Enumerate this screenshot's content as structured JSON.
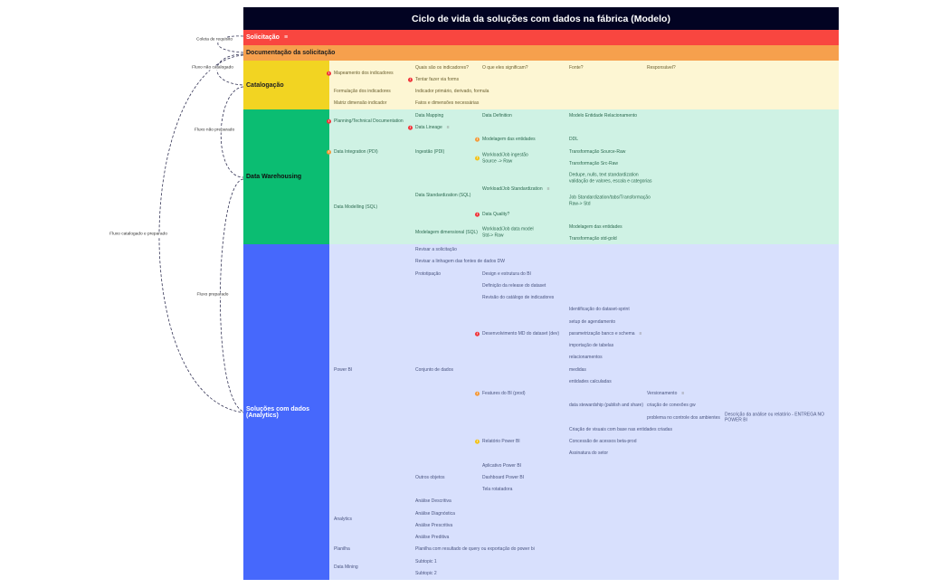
{
  "title": "Ciclo de vida da soluções com dados na fábrica (Modelo)",
  "colors": {
    "title_bg": "#020322",
    "solicitacao": "#f94640",
    "documentacao": "#f6a04d",
    "catalogacao": "#f2d422",
    "catalogacao_bg": "#fdf6d3",
    "dw": "#0bbd72",
    "dw_bg": "#cff2e4",
    "analytics": "#4668fc",
    "analytics_bg": "#d8e0fd"
  },
  "bands": {
    "solicitacao": "Solicitação",
    "documentacao": "Documentação da solicitação"
  },
  "connectors": [
    "Coleta de requisito",
    "Fluxo não catalogado",
    "Fluxo não preparado",
    "Fluxo catalogado e preparado",
    "Fluxo preparado"
  ],
  "sections": {
    "catalogacao": {
      "label": "Catalogação",
      "items": [
        {
          "text": "Mapeamento dos indicadores",
          "icon": "red"
        },
        {
          "text": "Quais são os indicadores?"
        },
        {
          "text": "O que eles significam?"
        },
        {
          "text": "Fonte?"
        },
        {
          "text": "Responsável?"
        },
        {
          "text": "Tentar fazer via forms",
          "icon": "red"
        },
        {
          "text": "Formulação dos indicadores"
        },
        {
          "text": "Indicador primário, derivado, formula"
        },
        {
          "text": "Matriz dimensão indicador"
        },
        {
          "text": "Fatos e dimensões necessárias"
        }
      ]
    },
    "dw": {
      "label": "Data Warehousing",
      "items": [
        {
          "text": "Planning/Technical Documentation",
          "icon": "red"
        },
        {
          "text": "Data Mapping"
        },
        {
          "text": "Data Definition"
        },
        {
          "text": "Modelo Entidade Relacionamento"
        },
        {
          "text": "Data Lineage",
          "icon": "red",
          "note": true
        },
        {
          "text": "Modelagem das entidades",
          "icon": "orange"
        },
        {
          "text": "DDL"
        },
        {
          "text": "Data Integration (PDI)",
          "icon": "orange"
        },
        {
          "text": "Ingestão (PDI)"
        },
        {
          "text": "Workload/Job ingestão\nSource -> Raw",
          "icon": "yellow"
        },
        {
          "text": "Transformação Source-Raw"
        },
        {
          "text": "Transformação Src-Raw"
        },
        {
          "text": "Dedupe, nulls, text standardization\nvalidação de valores, escala e categorias"
        },
        {
          "text": "Workload/Job Standardization",
          "note": true
        },
        {
          "text": "Data Standardization (SQL)"
        },
        {
          "text": "Job Standardization/tabs/Transformação\nRaw-> Std"
        },
        {
          "text": "Data Modelling (SQL)"
        },
        {
          "text": "Data Quality?",
          "icon": "red"
        },
        {
          "text": "Modelagem das entidades"
        },
        {
          "text": "Modelagem dimensional (SQL)"
        },
        {
          "text": "Workload/Job data model\nStd-> Raw"
        },
        {
          "text": "Transformação std-gold"
        }
      ]
    },
    "analytics": {
      "label": "Soluções com dados (Analytics)",
      "items": [
        {
          "text": "Revisar a solicitação"
        },
        {
          "text": "Revisar a linhagem das fontes de dados DW"
        },
        {
          "text": "Prototipação"
        },
        {
          "text": "Design e estrutura do BI"
        },
        {
          "text": "Definição da release do dataset"
        },
        {
          "text": "Revisão do catálogo de indicadores"
        },
        {
          "text": "Identificação do dataset-sprint"
        },
        {
          "text": "setup de agendamento"
        },
        {
          "text": "Desenvolvimento MD do dataset (dev)",
          "icon": "red"
        },
        {
          "text": "parametrização banco e schema",
          "note": true
        },
        {
          "text": "importação de tabelas"
        },
        {
          "text": "relacionamentos"
        },
        {
          "text": "Power BI"
        },
        {
          "text": "Conjunto de dados"
        },
        {
          "text": "medidas"
        },
        {
          "text": "entidades calculadas"
        },
        {
          "text": "Features do BI (prod)",
          "icon": "orange"
        },
        {
          "text": "Versionamento",
          "note": true
        },
        {
          "text": "data stewardship (publish and share)"
        },
        {
          "text": "criação de conexões gw"
        },
        {
          "text": "problema no controle dos ambientes"
        },
        {
          "text": "Descrição da análise ou relatório - ENTREGA NO POWER BI"
        },
        {
          "text": "Criação de visuais com base nas entidades criadas"
        },
        {
          "text": "Relatório Power BI",
          "icon": "yellow"
        },
        {
          "text": "Concessão de acessos beta-prod"
        },
        {
          "text": "Assinatura do setor"
        },
        {
          "text": "Aplicativo Power BI"
        },
        {
          "text": "Outros objetos"
        },
        {
          "text": "Dashboard Power BI"
        },
        {
          "text": "Tela rotatadora"
        },
        {
          "text": "Análise Descritiva"
        },
        {
          "text": "Análise Diagnóstica"
        },
        {
          "text": "Analytics"
        },
        {
          "text": "Análise Prescritiva"
        },
        {
          "text": "Análise Preditiva"
        },
        {
          "text": "Planilha"
        },
        {
          "text": "Planilha com resultado de query ou exportação do power bi"
        },
        {
          "text": "Subtopic 1"
        },
        {
          "text": "Data Mining"
        },
        {
          "text": "Subtopic 2"
        }
      ]
    }
  }
}
